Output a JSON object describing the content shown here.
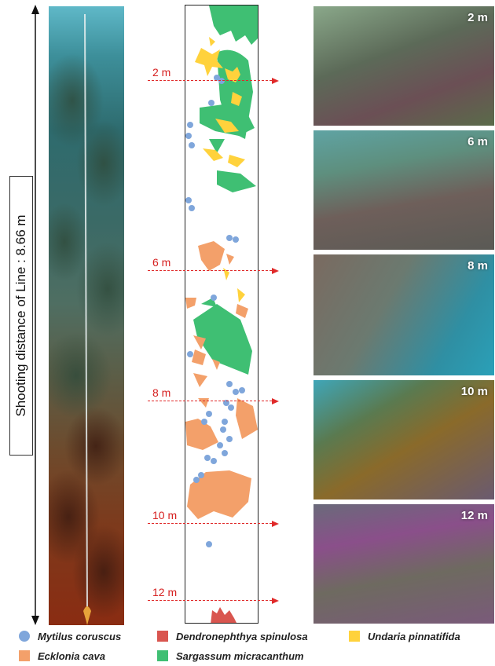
{
  "scale": {
    "label": "Shooting distance of Line : 8.66 m"
  },
  "depths": [
    {
      "label": "2 m",
      "y": 102
    },
    {
      "label": "6 m",
      "y": 344
    },
    {
      "label": "8 m",
      "y": 510
    },
    {
      "label": "10 m",
      "y": 666
    },
    {
      "label": "12 m",
      "y": 764
    }
  ],
  "photos": [
    {
      "label": "2 m",
      "top": 8,
      "height": 152
    },
    {
      "label": "6 m",
      "top": 166,
      "height": 152
    },
    {
      "label": "8 m",
      "top": 324,
      "height": 154
    },
    {
      "label": "10 m",
      "top": 484,
      "height": 152
    },
    {
      "label": "12 m",
      "top": 642,
      "height": 152
    }
  ],
  "legend": [
    {
      "name": "Mytilus coruscus",
      "color": "#7fa6db",
      "shape": "circle"
    },
    {
      "name": "Dendronephthya spinulosa",
      "color": "#d9554f",
      "shape": "square"
    },
    {
      "name": "Undaria pinnatifida",
      "color": "#ffd23c",
      "shape": "square"
    },
    {
      "name": "Ecklonia cava",
      "color": "#f3a06a",
      "shape": "square"
    },
    {
      "name": "Sargassum micracanthum",
      "color": "#3fbf73",
      "shape": "square"
    }
  ],
  "colors": {
    "mytilus": "#7fa6db",
    "dendronephthya": "#d9554f",
    "undaria": "#ffd23c",
    "ecklonia": "#f3a06a",
    "sargassum": "#3fbf73",
    "depth_marker": "#e02a2a"
  }
}
